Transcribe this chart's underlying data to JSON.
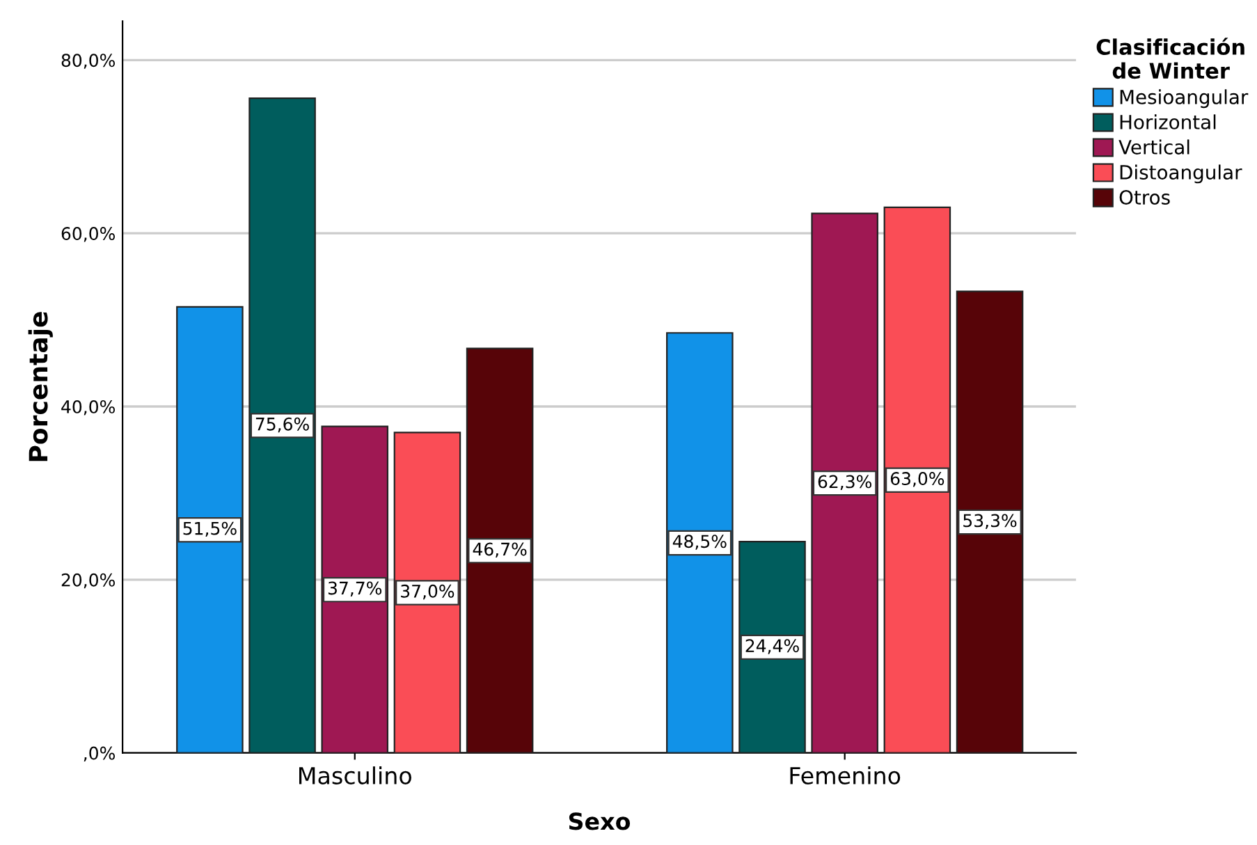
{
  "chart_data": {
    "type": "bar",
    "xlabel": "Sexo",
    "ylabel": "Porcentaje",
    "legend_title": "Clasificación\nde Winter",
    "categories": [
      "Masculino",
      "Femenino"
    ],
    "series": [
      {
        "name": "Mesioangular",
        "color": "#1192e8",
        "values": [
          51.5,
          48.5
        ],
        "value_labels": [
          "51,5%",
          "48,5%"
        ]
      },
      {
        "name": "Horizontal",
        "color": "#005d5d",
        "values": [
          75.6,
          24.4
        ],
        "value_labels": [
          "75,6%",
          "24,4%"
        ]
      },
      {
        "name": "Vertical",
        "color": "#9f1853",
        "values": [
          37.7,
          62.3
        ],
        "value_labels": [
          "37,7%",
          "62,3%"
        ]
      },
      {
        "name": "Distoangular",
        "color": "#fa4d56",
        "values": [
          37.0,
          63.0
        ],
        "value_labels": [
          "37,0%",
          "63,0%"
        ]
      },
      {
        "name": "Otros",
        "color": "#570408",
        "values": [
          46.7,
          53.3
        ],
        "value_labels": [
          "46,7%",
          "53,3%"
        ]
      }
    ],
    "ylim": [
      0,
      84.5
    ],
    "yticks": [
      {
        "value": 0,
        "label": ",0%"
      },
      {
        "value": 20,
        "label": "20,0%"
      },
      {
        "value": 40,
        "label": "40,0%"
      },
      {
        "value": 60,
        "label": "60,0%"
      },
      {
        "value": 80,
        "label": "80,0%"
      }
    ],
    "grid": "y",
    "legend": "right"
  }
}
